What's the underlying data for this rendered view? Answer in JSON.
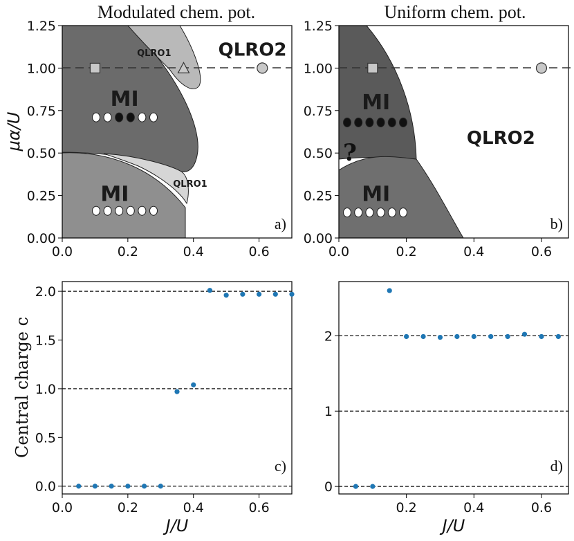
{
  "chart_data": [
    {
      "panel": "a)",
      "type": "phase_diagram",
      "title": "Modulated chem. pot.",
      "xlabel": "",
      "ylabel": "μα/U",
      "xlim": [
        0.0,
        0.7
      ],
      "ylim": [
        0.0,
        1.25
      ],
      "x_ticks": [
        "0.0",
        "0.2",
        "0.4",
        "0.6"
      ],
      "y_ticks": [
        "0.00",
        "0.25",
        "0.50",
        "0.75",
        "1.00",
        "1.25"
      ],
      "regions": [
        {
          "name": "MI",
          "label": "MI",
          "color": "#6b6b6b",
          "label_at": [
            0.19,
            0.82
          ]
        },
        {
          "name": "MI",
          "label": "MI",
          "color": "#8f8f8f",
          "label_at": [
            0.16,
            0.26
          ]
        },
        {
          "name": "QLRO1",
          "label": "QLRO1",
          "color": "#b9b9b9",
          "label_at": [
            0.28,
            1.09
          ]
        },
        {
          "name": "QLRO1",
          "label": "QLRO1",
          "color": "#d6d6d6",
          "label_at": [
            0.39,
            0.32
          ]
        },
        {
          "name": "QLRO2",
          "label": "QLRO2",
          "color": "#ffffff",
          "label_at": [
            0.58,
            1.11
          ]
        }
      ],
      "dashed_line_y": 1.0,
      "markers": [
        {
          "shape": "square",
          "x": 0.1,
          "y": 1.0
        },
        {
          "shape": "triangle",
          "x": 0.37,
          "y": 1.0
        },
        {
          "shape": "circle",
          "x": 0.61,
          "y": 1.0
        }
      ],
      "site_rows": [
        {
          "y": 0.71,
          "pattern": [
            "white",
            "white",
            "black",
            "black",
            "white",
            "white"
          ]
        },
        {
          "y": 0.16,
          "pattern": [
            "white",
            "white",
            "white",
            "white",
            "white",
            "white"
          ]
        }
      ]
    },
    {
      "panel": "b)",
      "type": "phase_diagram",
      "title": "Uniform chem. pot.",
      "xlabel": "",
      "ylabel": "",
      "xlim": [
        0.0,
        0.68
      ],
      "ylim": [
        0.0,
        1.25
      ],
      "x_ticks": [
        "0.0",
        "0.2",
        "0.4",
        "0.6"
      ],
      "y_ticks": [
        "0.00",
        "0.25",
        "0.50",
        "0.75",
        "1.00",
        "1.25"
      ],
      "regions": [
        {
          "name": "MI",
          "label": "MI",
          "color": "#5a5a5a",
          "label_at": [
            0.11,
            0.8
          ]
        },
        {
          "name": "MI",
          "label": "MI",
          "color": "#6f6f6f",
          "label_at": [
            0.11,
            0.26
          ]
        },
        {
          "name": "QLRO2",
          "label": "QLRO2",
          "color": "#ffffff",
          "label_at": [
            0.48,
            0.59
          ]
        }
      ],
      "unknown_label": "?",
      "dashed_line_y": 1.0,
      "markers": [
        {
          "shape": "square",
          "x": 0.1,
          "y": 1.0
        },
        {
          "shape": "circle",
          "x": 0.6,
          "y": 1.0
        }
      ],
      "site_rows": [
        {
          "y": 0.68,
          "pattern": [
            "black",
            "black",
            "black",
            "black",
            "black",
            "black"
          ]
        },
        {
          "y": 0.15,
          "pattern": [
            "white",
            "white",
            "white",
            "white",
            "white",
            "white"
          ]
        }
      ]
    },
    {
      "panel": "c)",
      "type": "scatter",
      "xlabel": "J/U",
      "ylabel": "Central charge c",
      "xlim": [
        0.0,
        0.7
      ],
      "ylim": [
        -0.08,
        2.1
      ],
      "x_ticks": [
        "0.0",
        "0.2",
        "0.4",
        "0.6"
      ],
      "y_ticks": [
        "0.0",
        "0.5",
        "1.0",
        "1.5",
        "2.0"
      ],
      "reference_lines": [
        0,
        1,
        2
      ],
      "color": "#1f77b4",
      "x": [
        0.05,
        0.1,
        0.15,
        0.2,
        0.25,
        0.3,
        0.35,
        0.4,
        0.45,
        0.5,
        0.55,
        0.6,
        0.65,
        0.7
      ],
      "y": [
        0.0,
        0.0,
        0.0,
        0.0,
        0.0,
        0.0,
        0.97,
        1.04,
        2.01,
        1.96,
        1.97,
        1.97,
        1.97,
        1.97
      ]
    },
    {
      "panel": "d)",
      "type": "scatter",
      "xlabel": "J/U",
      "ylabel": "",
      "xlim": [
        0.0,
        0.68
      ],
      "ylim": [
        -0.1,
        2.72
      ],
      "x_ticks": [
        "0.2",
        "0.4",
        "0.6"
      ],
      "y_ticks": [
        "0",
        "1",
        "2"
      ],
      "reference_lines": [
        0,
        1,
        2
      ],
      "color": "#1f77b4",
      "x": [
        0.05,
        0.1,
        0.15,
        0.2,
        0.25,
        0.3,
        0.35,
        0.4,
        0.45,
        0.5,
        0.55,
        0.6,
        0.65
      ],
      "y": [
        0.0,
        0.0,
        2.6,
        1.99,
        1.99,
        1.98,
        1.99,
        1.99,
        1.99,
        1.99,
        2.02,
        1.99,
        1.99
      ]
    }
  ]
}
